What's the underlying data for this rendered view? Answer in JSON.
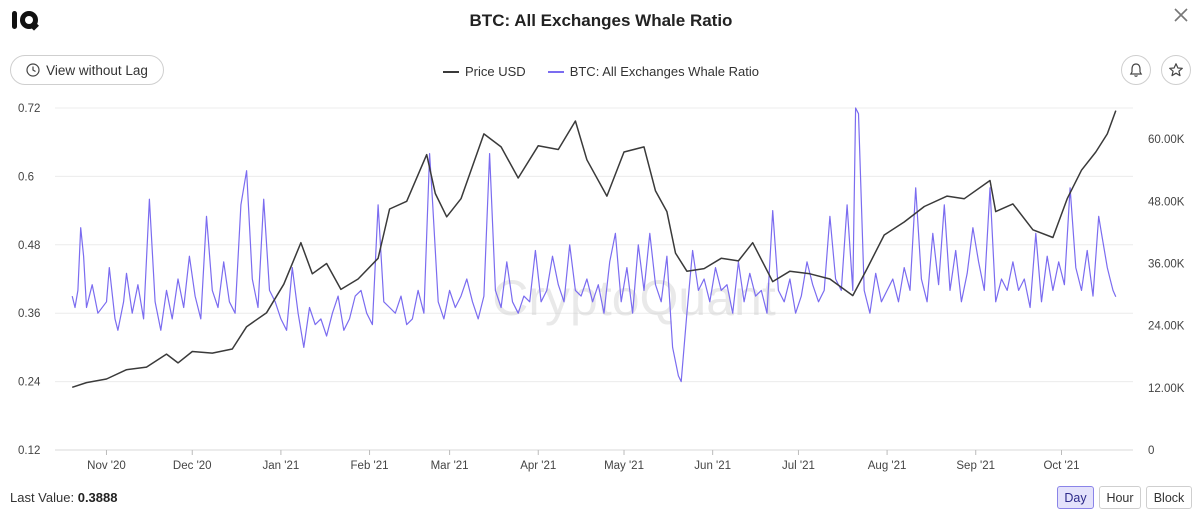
{
  "header": {
    "title": "BTC: All Exchanges Whale Ratio",
    "view_lag_label": "View without Lag"
  },
  "legend": [
    {
      "label": "Price USD",
      "color": "#3a3a3a"
    },
    {
      "label": "BTC: All Exchanges Whale Ratio",
      "color": "#7b6cf0"
    }
  ],
  "footer": {
    "last_value_label": "Last Value:",
    "last_value": "0.3888",
    "intervals": [
      "Day",
      "Hour",
      "Block"
    ],
    "active_interval": "Day"
  },
  "watermark": "CryptoQuant",
  "chart_data": {
    "type": "line",
    "title": "BTC: All Exchanges Whale Ratio",
    "x_range": [
      "2020-10-20",
      "2021-10-20"
    ],
    "x_tick_labels": [
      "Nov '20",
      "Dec '20",
      "Jan '21",
      "Feb '21",
      "Mar '21",
      "Apr '21",
      "May '21",
      "Jun '21",
      "Jul '21",
      "Aug '21",
      "Sep '21",
      "Oct '21"
    ],
    "x_tick_dates": [
      "2020-11-01",
      "2020-12-01",
      "2021-01-01",
      "2021-02-01",
      "2021-03-01",
      "2021-04-01",
      "2021-05-01",
      "2021-06-01",
      "2021-07-01",
      "2021-08-01",
      "2021-09-01",
      "2021-10-01"
    ],
    "y_left": {
      "ticks": [
        "0.12",
        "0.24",
        "0.36",
        "0.48",
        "0.6",
        "0.72"
      ],
      "range": [
        0.12,
        0.72
      ]
    },
    "y_right": {
      "ticks": [
        "0",
        "12.00K",
        "24.00K",
        "36.00K",
        "48.00K",
        "60.00K"
      ],
      "range": [
        0,
        66000
      ]
    },
    "grid": "horizontal",
    "legend_position": "top-center",
    "series": [
      {
        "name": "Price USD",
        "axis": "right",
        "color": "#3a3a3a",
        "points": [
          [
            "2020-10-20",
            12100
          ],
          [
            "2020-10-25",
            13000
          ],
          [
            "2020-11-01",
            13700
          ],
          [
            "2020-11-08",
            15500
          ],
          [
            "2020-11-15",
            16000
          ],
          [
            "2020-11-22",
            18500
          ],
          [
            "2020-11-26",
            16800
          ],
          [
            "2020-12-01",
            19000
          ],
          [
            "2020-12-08",
            18700
          ],
          [
            "2020-12-15",
            19500
          ],
          [
            "2020-12-20",
            23800
          ],
          [
            "2020-12-27",
            26500
          ],
          [
            "2021-01-02",
            32000
          ],
          [
            "2021-01-08",
            40000
          ],
          [
            "2021-01-12",
            34000
          ],
          [
            "2021-01-17",
            36000
          ],
          [
            "2021-01-22",
            31000
          ],
          [
            "2021-01-28",
            33000
          ],
          [
            "2021-02-04",
            37000
          ],
          [
            "2021-02-08",
            46500
          ],
          [
            "2021-02-14",
            48000
          ],
          [
            "2021-02-21",
            57000
          ],
          [
            "2021-02-24",
            49500
          ],
          [
            "2021-02-28",
            45000
          ],
          [
            "2021-03-05",
            48500
          ],
          [
            "2021-03-13",
            61000
          ],
          [
            "2021-03-19",
            58500
          ],
          [
            "2021-03-25",
            52500
          ],
          [
            "2021-04-01",
            58700
          ],
          [
            "2021-04-08",
            58000
          ],
          [
            "2021-04-14",
            63500
          ],
          [
            "2021-04-18",
            56000
          ],
          [
            "2021-04-25",
            49000
          ],
          [
            "2021-05-01",
            57500
          ],
          [
            "2021-05-08",
            58500
          ],
          [
            "2021-05-12",
            50000
          ],
          [
            "2021-05-16",
            46000
          ],
          [
            "2021-05-19",
            38000
          ],
          [
            "2021-05-23",
            34500
          ],
          [
            "2021-05-29",
            35000
          ],
          [
            "2021-06-04",
            37000
          ],
          [
            "2021-06-10",
            36500
          ],
          [
            "2021-06-15",
            40000
          ],
          [
            "2021-06-22",
            32500
          ],
          [
            "2021-06-28",
            34500
          ],
          [
            "2021-07-05",
            34000
          ],
          [
            "2021-07-12",
            33000
          ],
          [
            "2021-07-20",
            29800
          ],
          [
            "2021-07-25",
            35000
          ],
          [
            "2021-07-31",
            41500
          ],
          [
            "2021-08-07",
            44000
          ],
          [
            "2021-08-14",
            47000
          ],
          [
            "2021-08-22",
            49000
          ],
          [
            "2021-08-28",
            48500
          ],
          [
            "2021-09-06",
            52000
          ],
          [
            "2021-09-08",
            46000
          ],
          [
            "2021-09-14",
            47500
          ],
          [
            "2021-09-21",
            42500
          ],
          [
            "2021-09-28",
            41000
          ],
          [
            "2021-10-03",
            48500
          ],
          [
            "2021-10-08",
            54000
          ],
          [
            "2021-10-13",
            57500
          ],
          [
            "2021-10-17",
            61000
          ],
          [
            "2021-10-20",
            65500
          ]
        ]
      },
      {
        "name": "BTC: All Exchanges Whale Ratio",
        "axis": "left",
        "color": "#7b6cf0",
        "points": [
          [
            "2020-10-20",
            0.39
          ],
          [
            "2020-10-21",
            0.37
          ],
          [
            "2020-10-22",
            0.4
          ],
          [
            "2020-10-23",
            0.51
          ],
          [
            "2020-10-24",
            0.46
          ],
          [
            "2020-10-25",
            0.37
          ],
          [
            "2020-10-27",
            0.41
          ],
          [
            "2020-10-29",
            0.36
          ],
          [
            "2020-11-01",
            0.38
          ],
          [
            "2020-11-02",
            0.44
          ],
          [
            "2020-11-04",
            0.35
          ],
          [
            "2020-11-05",
            0.33
          ],
          [
            "2020-11-07",
            0.38
          ],
          [
            "2020-11-08",
            0.43
          ],
          [
            "2020-11-10",
            0.36
          ],
          [
            "2020-11-12",
            0.41
          ],
          [
            "2020-11-14",
            0.35
          ],
          [
            "2020-11-16",
            0.56
          ],
          [
            "2020-11-18",
            0.38
          ],
          [
            "2020-11-20",
            0.33
          ],
          [
            "2020-11-22",
            0.4
          ],
          [
            "2020-11-24",
            0.35
          ],
          [
            "2020-11-26",
            0.42
          ],
          [
            "2020-11-28",
            0.37
          ],
          [
            "2020-11-30",
            0.46
          ],
          [
            "2020-12-02",
            0.39
          ],
          [
            "2020-12-04",
            0.35
          ],
          [
            "2020-12-06",
            0.53
          ],
          [
            "2020-12-08",
            0.4
          ],
          [
            "2020-12-10",
            0.37
          ],
          [
            "2020-12-12",
            0.45
          ],
          [
            "2020-12-14",
            0.38
          ],
          [
            "2020-12-16",
            0.36
          ],
          [
            "2020-12-18",
            0.55
          ],
          [
            "2020-12-20",
            0.61
          ],
          [
            "2020-12-22",
            0.42
          ],
          [
            "2020-12-24",
            0.37
          ],
          [
            "2020-12-26",
            0.56
          ],
          [
            "2020-12-28",
            0.4
          ],
          [
            "2020-12-30",
            0.38
          ],
          [
            "2021-01-01",
            0.35
          ],
          [
            "2021-01-03",
            0.33
          ],
          [
            "2021-01-05",
            0.44
          ],
          [
            "2021-01-07",
            0.36
          ],
          [
            "2021-01-09",
            0.3
          ],
          [
            "2021-01-11",
            0.37
          ],
          [
            "2021-01-13",
            0.34
          ],
          [
            "2021-01-15",
            0.35
          ],
          [
            "2021-01-17",
            0.32
          ],
          [
            "2021-01-19",
            0.36
          ],
          [
            "2021-01-21",
            0.39
          ],
          [
            "2021-01-23",
            0.33
          ],
          [
            "2021-01-25",
            0.35
          ],
          [
            "2021-01-27",
            0.39
          ],
          [
            "2021-01-29",
            0.4
          ],
          [
            "2021-01-31",
            0.36
          ],
          [
            "2021-02-02",
            0.34
          ],
          [
            "2021-02-04",
            0.55
          ],
          [
            "2021-02-06",
            0.38
          ],
          [
            "2021-02-08",
            0.37
          ],
          [
            "2021-02-10",
            0.36
          ],
          [
            "2021-02-12",
            0.39
          ],
          [
            "2021-02-14",
            0.34
          ],
          [
            "2021-02-16",
            0.35
          ],
          [
            "2021-02-18",
            0.4
          ],
          [
            "2021-02-20",
            0.36
          ],
          [
            "2021-02-22",
            0.64
          ],
          [
            "2021-02-23",
            0.56
          ],
          [
            "2021-02-25",
            0.38
          ],
          [
            "2021-02-27",
            0.35
          ],
          [
            "2021-03-01",
            0.4
          ],
          [
            "2021-03-03",
            0.37
          ],
          [
            "2021-03-05",
            0.39
          ],
          [
            "2021-03-07",
            0.42
          ],
          [
            "2021-03-09",
            0.38
          ],
          [
            "2021-03-11",
            0.35
          ],
          [
            "2021-03-13",
            0.39
          ],
          [
            "2021-03-15",
            0.64
          ],
          [
            "2021-03-17",
            0.4
          ],
          [
            "2021-03-19",
            0.37
          ],
          [
            "2021-03-21",
            0.45
          ],
          [
            "2021-03-23",
            0.38
          ],
          [
            "2021-03-25",
            0.36
          ],
          [
            "2021-03-27",
            0.39
          ],
          [
            "2021-03-29",
            0.38
          ],
          [
            "2021-03-31",
            0.47
          ],
          [
            "2021-04-02",
            0.38
          ],
          [
            "2021-04-04",
            0.4
          ],
          [
            "2021-04-06",
            0.46
          ],
          [
            "2021-04-08",
            0.41
          ],
          [
            "2021-04-10",
            0.38
          ],
          [
            "2021-04-12",
            0.48
          ],
          [
            "2021-04-14",
            0.4
          ],
          [
            "2021-04-16",
            0.39
          ],
          [
            "2021-04-18",
            0.42
          ],
          [
            "2021-04-20",
            0.38
          ],
          [
            "2021-04-22",
            0.41
          ],
          [
            "2021-04-24",
            0.36
          ],
          [
            "2021-04-26",
            0.45
          ],
          [
            "2021-04-28",
            0.5
          ],
          [
            "2021-04-30",
            0.38
          ],
          [
            "2021-05-02",
            0.44
          ],
          [
            "2021-05-04",
            0.36
          ],
          [
            "2021-05-06",
            0.48
          ],
          [
            "2021-05-08",
            0.4
          ],
          [
            "2021-05-10",
            0.5
          ],
          [
            "2021-05-12",
            0.41
          ],
          [
            "2021-05-14",
            0.38
          ],
          [
            "2021-05-16",
            0.46
          ],
          [
            "2021-05-18",
            0.3
          ],
          [
            "2021-05-20",
            0.25
          ],
          [
            "2021-05-21",
            0.24
          ],
          [
            "2021-05-23",
            0.36
          ],
          [
            "2021-05-25",
            0.47
          ],
          [
            "2021-05-27",
            0.4
          ],
          [
            "2021-05-29",
            0.42
          ],
          [
            "2021-05-31",
            0.38
          ],
          [
            "2021-06-02",
            0.44
          ],
          [
            "2021-06-04",
            0.4
          ],
          [
            "2021-06-06",
            0.41
          ],
          [
            "2021-06-08",
            0.36
          ],
          [
            "2021-06-10",
            0.45
          ],
          [
            "2021-06-12",
            0.38
          ],
          [
            "2021-06-14",
            0.43
          ],
          [
            "2021-06-16",
            0.39
          ],
          [
            "2021-06-18",
            0.4
          ],
          [
            "2021-06-20",
            0.36
          ],
          [
            "2021-06-22",
            0.54
          ],
          [
            "2021-06-24",
            0.4
          ],
          [
            "2021-06-26",
            0.38
          ],
          [
            "2021-06-28",
            0.42
          ],
          [
            "2021-06-30",
            0.36
          ],
          [
            "2021-07-02",
            0.39
          ],
          [
            "2021-07-04",
            0.45
          ],
          [
            "2021-07-06",
            0.41
          ],
          [
            "2021-07-08",
            0.38
          ],
          [
            "2021-07-10",
            0.4
          ],
          [
            "2021-07-12",
            0.53
          ],
          [
            "2021-07-14",
            0.42
          ],
          [
            "2021-07-16",
            0.4
          ],
          [
            "2021-07-18",
            0.55
          ],
          [
            "2021-07-20",
            0.4
          ],
          [
            "2021-07-21",
            0.72
          ],
          [
            "2021-07-22",
            0.71
          ],
          [
            "2021-07-24",
            0.4
          ],
          [
            "2021-07-26",
            0.36
          ],
          [
            "2021-07-28",
            0.43
          ],
          [
            "2021-07-30",
            0.38
          ],
          [
            "2021-08-01",
            0.4
          ],
          [
            "2021-08-03",
            0.42
          ],
          [
            "2021-08-05",
            0.38
          ],
          [
            "2021-08-07",
            0.44
          ],
          [
            "2021-08-09",
            0.4
          ],
          [
            "2021-08-11",
            0.58
          ],
          [
            "2021-08-13",
            0.42
          ],
          [
            "2021-08-15",
            0.38
          ],
          [
            "2021-08-17",
            0.5
          ],
          [
            "2021-08-19",
            0.41
          ],
          [
            "2021-08-21",
            0.55
          ],
          [
            "2021-08-23",
            0.4
          ],
          [
            "2021-08-25",
            0.47
          ],
          [
            "2021-08-27",
            0.38
          ],
          [
            "2021-08-29",
            0.43
          ],
          [
            "2021-08-31",
            0.51
          ],
          [
            "2021-09-02",
            0.45
          ],
          [
            "2021-09-04",
            0.4
          ],
          [
            "2021-09-06",
            0.58
          ],
          [
            "2021-09-08",
            0.38
          ],
          [
            "2021-09-10",
            0.42
          ],
          [
            "2021-09-12",
            0.4
          ],
          [
            "2021-09-14",
            0.45
          ],
          [
            "2021-09-16",
            0.4
          ],
          [
            "2021-09-18",
            0.42
          ],
          [
            "2021-09-20",
            0.37
          ],
          [
            "2021-09-22",
            0.5
          ],
          [
            "2021-09-24",
            0.38
          ],
          [
            "2021-09-26",
            0.46
          ],
          [
            "2021-09-28",
            0.4
          ],
          [
            "2021-09-30",
            0.45
          ],
          [
            "2021-10-02",
            0.41
          ],
          [
            "2021-10-04",
            0.58
          ],
          [
            "2021-10-06",
            0.44
          ],
          [
            "2021-10-08",
            0.4
          ],
          [
            "2021-10-10",
            0.47
          ],
          [
            "2021-10-12",
            0.39
          ],
          [
            "2021-10-14",
            0.53
          ],
          [
            "2021-10-15",
            0.5
          ],
          [
            "2021-10-17",
            0.44
          ],
          [
            "2021-10-18",
            0.42
          ],
          [
            "2021-10-19",
            0.4
          ],
          [
            "2021-10-20",
            0.3888
          ]
        ]
      }
    ]
  }
}
